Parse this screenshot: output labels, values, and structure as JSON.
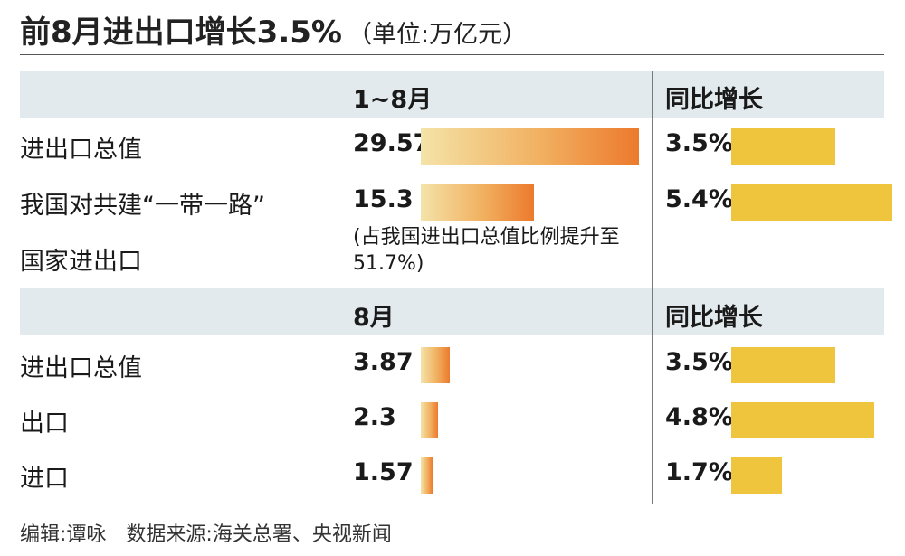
{
  "title": "前8月进出口增长3.5%",
  "unit": "（单位:万亿元）",
  "footer": {
    "editor": "编辑:谭咏",
    "source": "数据来源:海关总署、央视新闻"
  },
  "chart_data": {
    "type": "bar",
    "title": "前8月进出口增长3.5%",
    "unit": "（单位:万亿元）",
    "value_max": 29.57,
    "growth_max": 5.4,
    "sections": [
      {
        "period": "1~8月",
        "growth_header": "同比增长",
        "rows": [
          {
            "label": "进出口总值",
            "value_text": "29.57",
            "value": 29.57,
            "growth_text": "3.5%",
            "growth": 3.5
          },
          {
            "label": "我国对共建“一带一路”国家进出口",
            "label_lines": [
              "我国对共建“一带一路”",
              "国家进出口"
            ],
            "value_text": "15.3",
            "value": 15.3,
            "growth_text": "5.4%",
            "growth": 5.4,
            "note": "(占我国进出口总值比例提升至51.7%)"
          }
        ]
      },
      {
        "period": "8月",
        "growth_header": "同比增长",
        "rows": [
          {
            "label": "进出口总值",
            "value_text": "3.87",
            "value": 3.87,
            "growth_text": "3.5%",
            "growth": 3.5
          },
          {
            "label": "出口",
            "value_text": "2.3",
            "value": 2.3,
            "growth_text": "4.8%",
            "growth": 4.8
          },
          {
            "label": "进口",
            "value_text": "1.57",
            "value": 1.57,
            "growth_text": "1.7%",
            "growth": 1.7
          }
        ]
      }
    ]
  }
}
